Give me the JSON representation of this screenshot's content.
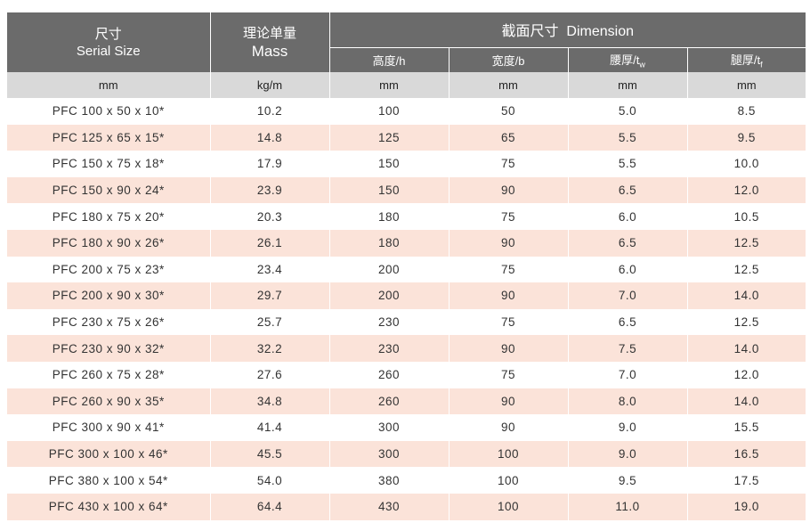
{
  "header": {
    "serial_cn": "尺寸",
    "serial_en": "Serial Size",
    "mass_cn": "理论单量",
    "mass_en": "Mass",
    "dimension": "截面尺寸  Dimension",
    "height": "高度/h",
    "width": "宽度/b",
    "web_label": "腰厚/t",
    "web_sub": "w",
    "flange_label": "腿厚/t",
    "flange_sub": "f"
  },
  "units": [
    "mm",
    "kg/m",
    "mm",
    "mm",
    "mm",
    "mm"
  ],
  "rows": [
    [
      "PFC 100 x 50 x 10*",
      "10.2",
      "100",
      "50",
      "5.0",
      "8.5"
    ],
    [
      "PFC 125 x 65 x 15*",
      "14.8",
      "125",
      "65",
      "5.5",
      "9.5"
    ],
    [
      "PFC 150 x 75 x 18*",
      "17.9",
      "150",
      "75",
      "5.5",
      "10.0"
    ],
    [
      "PFC 150 x 90 x 24*",
      "23.9",
      "150",
      "90",
      "6.5",
      "12.0"
    ],
    [
      "PFC 180 x 75 x 20*",
      "20.3",
      "180",
      "75",
      "6.0",
      "10.5"
    ],
    [
      "PFC 180 x 90 x 26*",
      "26.1",
      "180",
      "90",
      "6.5",
      "12.5"
    ],
    [
      "PFC 200 x 75 x 23*",
      "23.4",
      "200",
      "75",
      "6.0",
      "12.5"
    ],
    [
      "PFC 200 x 90 x 30*",
      "29.7",
      "200",
      "90",
      "7.0",
      "14.0"
    ],
    [
      "PFC 230 x 75 x 26*",
      "25.7",
      "230",
      "75",
      "6.5",
      "12.5"
    ],
    [
      "PFC 230 x 90 x 32*",
      "32.2",
      "230",
      "90",
      "7.5",
      "14.0"
    ],
    [
      "PFC 260 x 75 x 28*",
      "27.6",
      "260",
      "75",
      "7.0",
      "12.0"
    ],
    [
      "PFC 260 x 90 x 35*",
      "34.8",
      "260",
      "90",
      "8.0",
      "14.0"
    ],
    [
      "PFC 300 x 90 x 41*",
      "41.4",
      "300",
      "90",
      "9.0",
      "15.5"
    ],
    [
      "PFC 300 x 100 x 46*",
      "45.5",
      "300",
      "100",
      "9.0",
      "16.5"
    ],
    [
      "PFC 380 x 100 x 54*",
      "54.0",
      "380",
      "100",
      "9.5",
      "17.5"
    ],
    [
      "PFC 430 x 100 x 64*",
      "64.4",
      "430",
      "100",
      "11.0",
      "19.0"
    ]
  ],
  "colors": {
    "header_bg": "#6b6b6b",
    "units_bg": "#d9d9d9",
    "stripe": "#fbe3d9"
  }
}
